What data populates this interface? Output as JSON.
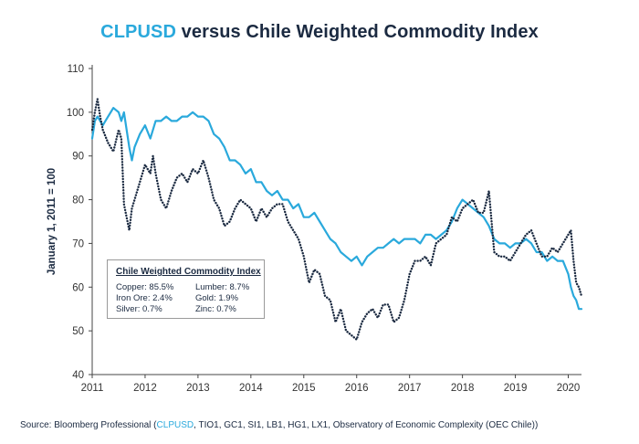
{
  "title": {
    "accent": "CLPUSD",
    "rest": " versus Chile Weighted Commodity Index"
  },
  "legend_box": {
    "title": "Chile Weighted Commodity Index",
    "items": [
      "Copper: 85.5%",
      "Lumber: 8.7%",
      "Iron Ore: 2.4%",
      "Gold: 1.9%",
      "Silver: 0.7%",
      "Zinc: 0.7%"
    ]
  },
  "source": {
    "prefix": "Source: Bloomberg Professional (",
    "accent": "CLPUSD",
    "suffix": ", TIO1, GC1, SI1, LB1, HG1, LX1, Observatory of Economic Complexity (OEC Chile))"
  },
  "colors": {
    "clpusd": "#2aa9dc",
    "commodity": "#1b2a41",
    "title": "#1b2a41",
    "axis": "#333333"
  },
  "chart_data": {
    "type": "line",
    "title": "CLPUSD versus Chile Weighted Commodity Index",
    "xlabel": "",
    "ylabel": "January 1, 2011 = 100",
    "xlim": [
      2011,
      2020.25
    ],
    "ylim": [
      40,
      110
    ],
    "x_ticks": [
      2011,
      2012,
      2013,
      2014,
      2015,
      2016,
      2017,
      2018,
      2019,
      2020
    ],
    "y_ticks": [
      40,
      50,
      60,
      70,
      80,
      90,
      100,
      110
    ],
    "grid": false,
    "series": [
      {
        "name": "CLPUSD",
        "style": "solid",
        "x": [
          2011.0,
          2011.05,
          2011.1,
          2011.2,
          2011.3,
          2011.4,
          2011.5,
          2011.55,
          2011.6,
          2011.7,
          2011.75,
          2011.8,
          2011.9,
          2012.0,
          2012.1,
          2012.2,
          2012.3,
          2012.4,
          2012.5,
          2012.6,
          2012.7,
          2012.8,
          2012.9,
          2013.0,
          2013.1,
          2013.2,
          2013.3,
          2013.4,
          2013.5,
          2013.6,
          2013.7,
          2013.8,
          2013.9,
          2014.0,
          2014.1,
          2014.2,
          2014.3,
          2014.4,
          2014.5,
          2014.6,
          2014.7,
          2014.8,
          2014.9,
          2015.0,
          2015.1,
          2015.2,
          2015.3,
          2015.4,
          2015.5,
          2015.6,
          2015.7,
          2015.8,
          2015.9,
          2016.0,
          2016.1,
          2016.2,
          2016.3,
          2016.4,
          2016.5,
          2016.6,
          2016.7,
          2016.8,
          2016.9,
          2017.0,
          2017.1,
          2017.2,
          2017.3,
          2017.4,
          2017.5,
          2017.6,
          2017.7,
          2017.8,
          2017.9,
          2018.0,
          2018.1,
          2018.2,
          2018.3,
          2018.4,
          2018.5,
          2018.6,
          2018.7,
          2018.8,
          2018.9,
          2019.0,
          2019.1,
          2019.2,
          2019.3,
          2019.4,
          2019.5,
          2019.6,
          2019.7,
          2019.8,
          2019.9,
          2020.0,
          2020.05,
          2020.1,
          2020.15,
          2020.2,
          2020.25
        ],
        "values": [
          94,
          98,
          99,
          97,
          99,
          101,
          100,
          98,
          100,
          92,
          89,
          92,
          95,
          97,
          94,
          98,
          98,
          99,
          98,
          98,
          99,
          99,
          100,
          99,
          99,
          98,
          95,
          94,
          92,
          89,
          89,
          88,
          86,
          87,
          84,
          84,
          82,
          81,
          82,
          80,
          80,
          78,
          79,
          76,
          76,
          77,
          75,
          73,
          71,
          70,
          68,
          67,
          66,
          67,
          65,
          67,
          68,
          69,
          69,
          70,
          71,
          70,
          71,
          71,
          71,
          70,
          72,
          72,
          71,
          72,
          73,
          75,
          78,
          80,
          79,
          78,
          77,
          76,
          74,
          71,
          70,
          70,
          69,
          70,
          70,
          71,
          70,
          68,
          68,
          66,
          67,
          66,
          66,
          63,
          60,
          58,
          57,
          55,
          55
        ]
      },
      {
        "name": "Chile Weighted Commodity Index",
        "style": "dotted",
        "x": [
          2011.0,
          2011.05,
          2011.1,
          2011.15,
          2011.2,
          2011.3,
          2011.4,
          2011.5,
          2011.55,
          2011.6,
          2011.7,
          2011.75,
          2011.8,
          2011.9,
          2012.0,
          2012.1,
          2012.15,
          2012.2,
          2012.3,
          2012.4,
          2012.5,
          2012.6,
          2012.7,
          2012.8,
          2012.9,
          2013.0,
          2013.1,
          2013.2,
          2013.3,
          2013.4,
          2013.5,
          2013.6,
          2013.7,
          2013.8,
          2013.9,
          2014.0,
          2014.1,
          2014.2,
          2014.3,
          2014.4,
          2014.5,
          2014.6,
          2014.7,
          2014.8,
          2014.9,
          2015.0,
          2015.1,
          2015.2,
          2015.3,
          2015.4,
          2015.5,
          2015.6,
          2015.7,
          2015.8,
          2015.9,
          2016.0,
          2016.1,
          2016.2,
          2016.3,
          2016.4,
          2016.5,
          2016.6,
          2016.7,
          2016.8,
          2016.9,
          2017.0,
          2017.1,
          2017.2,
          2017.3,
          2017.4,
          2017.5,
          2017.6,
          2017.7,
          2017.8,
          2017.9,
          2018.0,
          2018.1,
          2018.2,
          2018.3,
          2018.4,
          2018.5,
          2018.6,
          2018.7,
          2018.8,
          2018.9,
          2019.0,
          2019.1,
          2019.2,
          2019.3,
          2019.4,
          2019.5,
          2019.6,
          2019.7,
          2019.8,
          2019.9,
          2020.0,
          2020.05,
          2020.1,
          2020.15,
          2020.2,
          2020.25
        ],
        "values": [
          96,
          100,
          103,
          99,
          96,
          93,
          91,
          96,
          94,
          79,
          73,
          78,
          80,
          84,
          88,
          86,
          90,
          86,
          80,
          78,
          82,
          85,
          86,
          84,
          87,
          86,
          89,
          85,
          80,
          78,
          74,
          75,
          78,
          80,
          79,
          78,
          75,
          78,
          76,
          78,
          79,
          79,
          75,
          73,
          71,
          67,
          61,
          64,
          63,
          58,
          57,
          52,
          55,
          50,
          49,
          48,
          52,
          54,
          55,
          53,
          56,
          56,
          52,
          53,
          57,
          63,
          66,
          66,
          67,
          65,
          70,
          71,
          72,
          76,
          75,
          78,
          79,
          80,
          77,
          77,
          82,
          68,
          67,
          67,
          66,
          68,
          70,
          72,
          73,
          70,
          67,
          67,
          69,
          68,
          70,
          72,
          73,
          66,
          61,
          60,
          58
        ]
      }
    ]
  }
}
